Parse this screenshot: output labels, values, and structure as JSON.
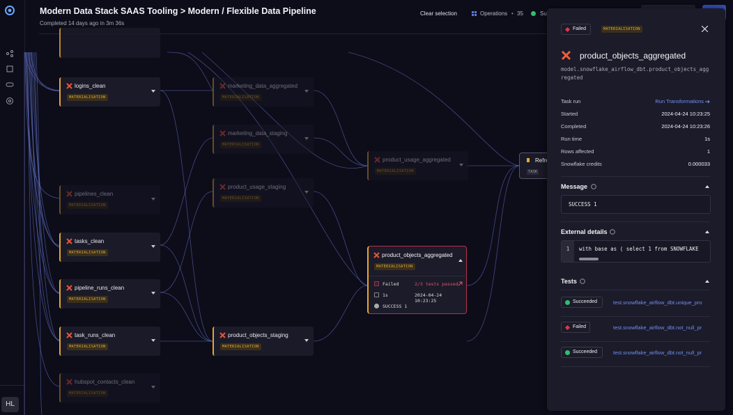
{
  "header": {
    "title": "Modern Data Stack SAAS Tooling > Modern / Flexible Data Pipeline",
    "subtitle": "Completed 14 days ago in 3m 36s"
  },
  "toolbar": {
    "clear": "Clear selection",
    "operations": "Operations",
    "separator": "•",
    "count": "35",
    "status": "Su"
  },
  "sidebar": {
    "avatar": "HL"
  },
  "nodes": [
    {
      "label": "logins_clean",
      "badge": "MATERIALISATION"
    },
    {
      "label": "marketing_data_aggregated",
      "badge": "MATERIALISATION"
    },
    {
      "label": "marketing_data_staging",
      "badge": "MATERIALISATION"
    },
    {
      "label": "product_usage_aggregated",
      "badge": "MATERIALISATION"
    },
    {
      "label": "pipelines_clean",
      "badge": "MATERIALISATION"
    },
    {
      "label": "product_usage_staging",
      "badge": "MATERIALISATION"
    },
    {
      "label": "tasks_clean",
      "badge": "MATERIALISATION"
    },
    {
      "label": "pipeline_runs_clean",
      "badge": "MATERIALISATION"
    },
    {
      "label": "task_runs_clean",
      "badge": "MATERIALISATION"
    },
    {
      "label": "product_objects_staging",
      "badge": "MATERIALISATION"
    },
    {
      "label": "hubspot_contacts_clean",
      "badge": "MATERIALISATION"
    }
  ],
  "selected_node": {
    "label": "product_objects_aggregated",
    "badge": "MATERIALISATION",
    "status": "Failed",
    "tests": "2/3 tests passed",
    "duration": "1s",
    "timestamp": "2024-04-24 10:23:25",
    "message": "SUCCESS 1"
  },
  "partial_node": {
    "label": "Refre",
    "tag": "TASK"
  },
  "panel": {
    "status": "Failed",
    "badge": "MATERIALISATION",
    "title": "product_objects_aggregated",
    "path": "model.snowflake_airflow_dbt.product_objects_aggregated",
    "details": [
      {
        "label": "Task run",
        "value": "Run Transformations"
      },
      {
        "label": "Started",
        "value": "2024-04-24 10:23:25"
      },
      {
        "label": "Completed",
        "value": "2024-04-24 10:23:26"
      },
      {
        "label": "Run time",
        "value": "1s"
      },
      {
        "label": "Rows affected",
        "value": "1"
      },
      {
        "label": "Snowflake credits",
        "value": "0.000033"
      }
    ],
    "message_title": "Message",
    "message": "SUCCESS 1",
    "external_title": "External details",
    "code_line": "1",
    "code": "with base as ( select 1 from SNOWFLAKE",
    "tests_title": "Tests",
    "tests": [
      {
        "status": "Succeeded",
        "name": "test.snowflake_airflow_dbt.unique_pro"
      },
      {
        "status": "Failed",
        "name": "test.snowflake_airflow_dbt.not_null_pr"
      },
      {
        "status": "Succeeded",
        "name": "test.snowflake_airflow_dbt.not_null_pr"
      }
    ]
  }
}
